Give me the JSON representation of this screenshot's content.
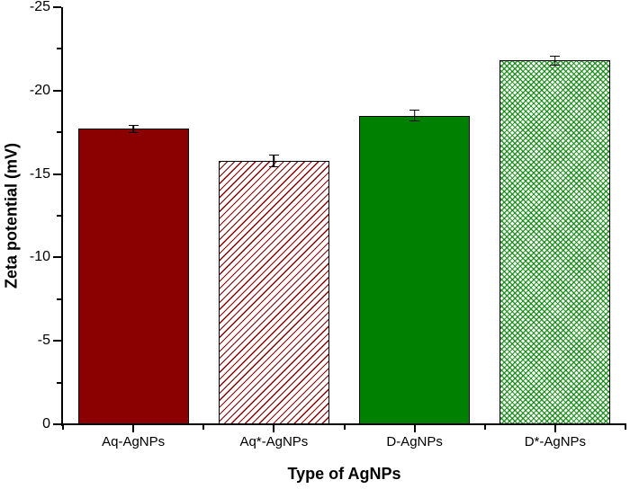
{
  "chart_data": {
    "type": "bar",
    "title": "",
    "xlabel": "Type of AgNPs",
    "ylabel": "Zeta potential (mV)",
    "categories": [
      "Aq-AgNPs",
      "Aq*-AgNPs",
      "D-AgNPs",
      "D*-AgNPs"
    ],
    "values": [
      -17.7,
      -15.8,
      -18.5,
      -21.8
    ],
    "errors": [
      0.15,
      0.3,
      0.25,
      0.2
    ],
    "ylim": [
      0,
      -25
    ],
    "axis_inverted": true,
    "y_major_step": 5,
    "y_minor_step": 2.5,
    "y_major_tick_labels": [
      "0",
      "-5",
      "-10",
      "-15",
      "-20",
      "-25"
    ],
    "grid": false,
    "legend": null,
    "bar_width_frac": 0.79,
    "bar_styles": [
      {
        "fill": "solid",
        "color": "#8B0000"
      },
      {
        "fill": "hatch-diagonal",
        "color": "#8B0000"
      },
      {
        "fill": "solid",
        "color": "#008000"
      },
      {
        "fill": "crosshatch",
        "color": "#008000"
      }
    ],
    "colors": {
      "dark_red": "#8B0000",
      "green": "#008000",
      "axis": "#000000",
      "background": "#ffffff"
    }
  }
}
